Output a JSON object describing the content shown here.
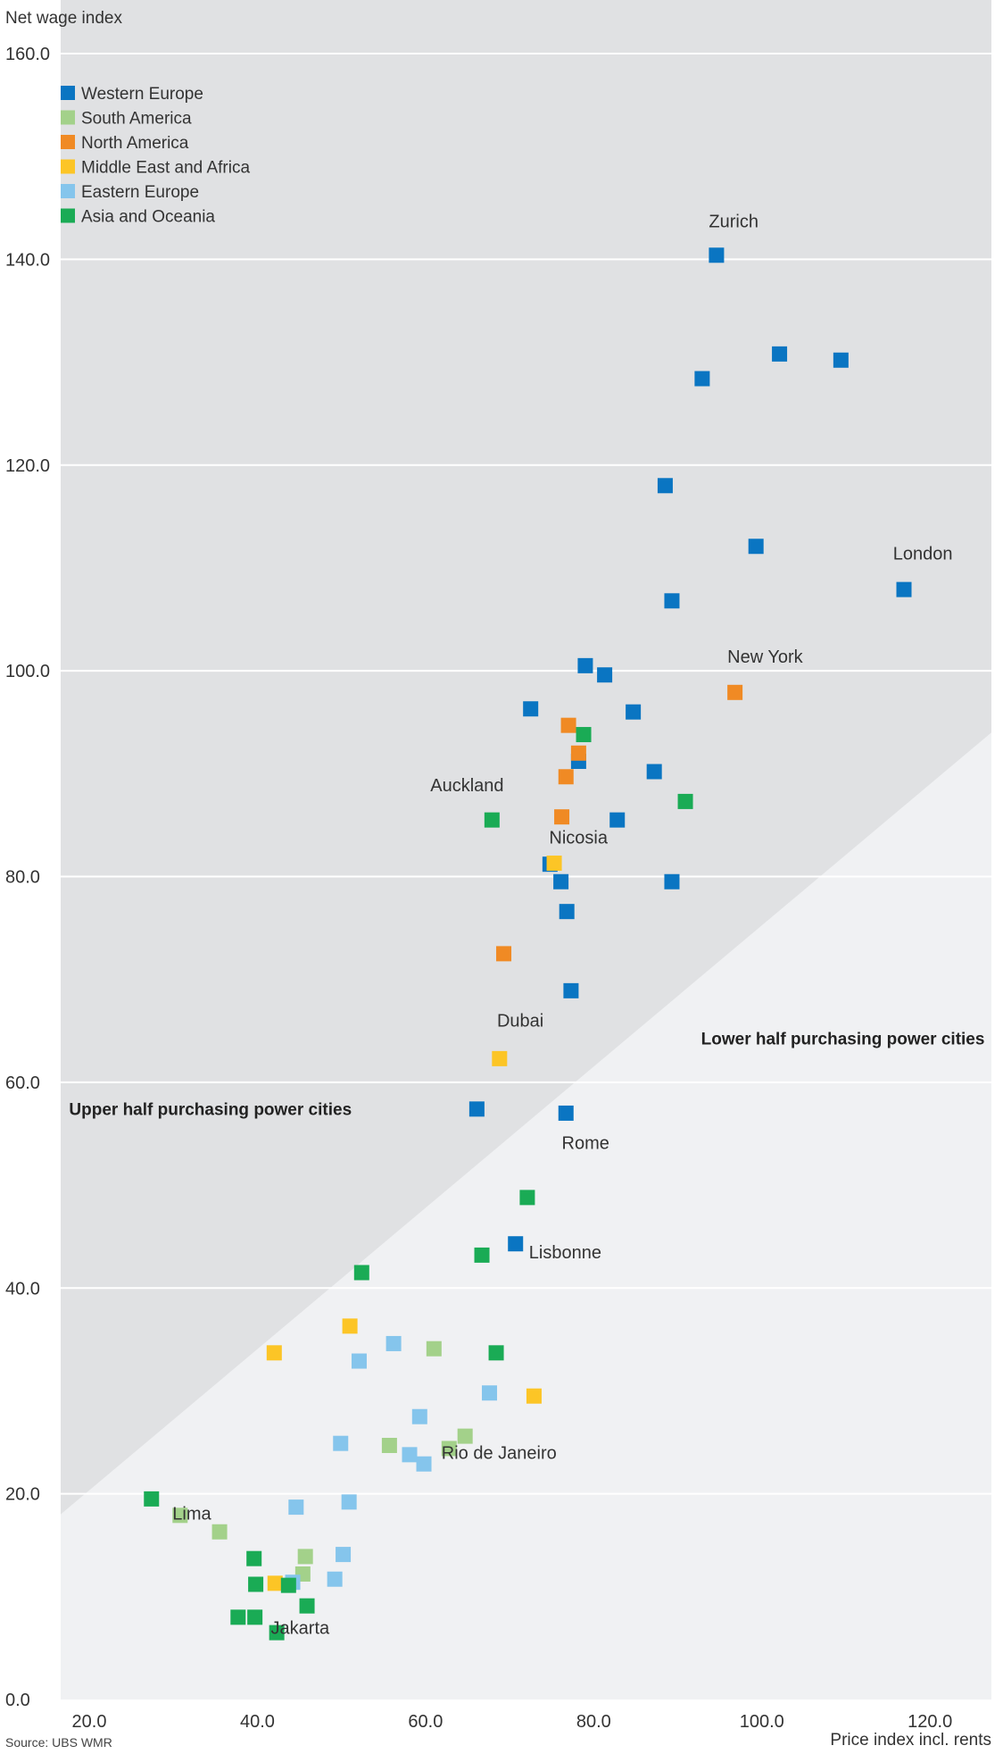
{
  "chart_data": {
    "type": "scatter",
    "ylabel": "Net wage index",
    "xlabel": "Price index incl. rents",
    "source": "Source: UBS WMR",
    "xlim": [
      18.3,
      129
    ],
    "ylim": [
      0,
      160
    ],
    "x_ticks": [
      "20.0",
      "40.0",
      "60.0",
      "80.0",
      "100.0",
      "120.0"
    ],
    "x_tick_values": [
      20,
      40,
      60,
      80,
      100,
      120
    ],
    "y_ticks": [
      "0.0",
      "20.0",
      "40.0",
      "60.0",
      "80.0",
      "100.0",
      "120.0",
      "140.0",
      "160.0"
    ],
    "y_tick_values": [
      0,
      20,
      40,
      60,
      80,
      100,
      120,
      140,
      160
    ],
    "grid": true,
    "legend_position": "top-left",
    "divider_line": {
      "from": [
        18.3,
        18
      ],
      "to": [
        129,
        94
      ]
    },
    "region_labels": {
      "upper": {
        "text": "Upper half purchasing power cities",
        "x": 19.3,
        "y": 56.8
      },
      "lower": {
        "text": "Lower half purchasing power cities",
        "x": 128.2,
        "y": 63.7
      }
    },
    "series": [
      {
        "name": "Western Europe",
        "color": "#0a75c2",
        "points": [
          [
            96.3,
            140.4
          ],
          [
            103.8,
            130.8
          ],
          [
            111.1,
            130.2
          ],
          [
            94.6,
            128.4
          ],
          [
            90.2,
            118.0
          ],
          [
            101.0,
            112.1
          ],
          [
            91.0,
            106.8
          ],
          [
            118.6,
            107.9
          ],
          [
            80.7,
            100.5
          ],
          [
            83.0,
            99.6
          ],
          [
            74.2,
            96.3
          ],
          [
            86.4,
            96.0
          ],
          [
            79.9,
            91.2
          ],
          [
            88.9,
            90.2
          ],
          [
            84.5,
            85.5
          ],
          [
            76.5,
            81.2
          ],
          [
            77.8,
            79.5
          ],
          [
            91.0,
            79.5
          ],
          [
            78.5,
            76.6
          ],
          [
            79.0,
            68.9
          ],
          [
            67.8,
            57.4
          ],
          [
            78.4,
            57.0
          ],
          [
            72.4,
            44.3
          ]
        ]
      },
      {
        "name": "South America",
        "color": "#a3d18a",
        "points": [
          [
            62.7,
            34.1
          ],
          [
            57.4,
            24.7
          ],
          [
            66.4,
            25.6
          ],
          [
            64.5,
            24.4
          ],
          [
            32.5,
            17.9
          ],
          [
            37.2,
            16.3
          ],
          [
            47.4,
            13.9
          ],
          [
            47.1,
            12.2
          ]
        ]
      },
      {
        "name": "North America",
        "color": "#f08a24",
        "points": [
          [
            98.5,
            97.9
          ],
          [
            78.7,
            94.7
          ],
          [
            79.9,
            92.0
          ],
          [
            78.4,
            89.7
          ],
          [
            77.9,
            85.8
          ],
          [
            71.0,
            72.5
          ]
        ]
      },
      {
        "name": "Middle East and Africa",
        "color": "#fcc526",
        "points": [
          [
            77.0,
            81.3
          ],
          [
            70.5,
            62.3
          ],
          [
            52.7,
            36.3
          ],
          [
            43.7,
            33.7
          ],
          [
            74.6,
            29.5
          ],
          [
            43.8,
            11.3
          ]
        ]
      },
      {
        "name": "Eastern Europe",
        "color": "#85c5ec",
        "points": [
          [
            57.9,
            34.6
          ],
          [
            53.8,
            32.9
          ],
          [
            69.3,
            29.8
          ],
          [
            61.0,
            27.5
          ],
          [
            51.6,
            24.9
          ],
          [
            59.8,
            23.8
          ],
          [
            61.5,
            22.9
          ],
          [
            52.6,
            19.2
          ],
          [
            46.3,
            18.7
          ],
          [
            51.9,
            14.1
          ],
          [
            50.9,
            11.7
          ],
          [
            45.9,
            11.4
          ]
        ]
      },
      {
        "name": "Asia and Oceania",
        "color": "#1aab55",
        "points": [
          [
            80.5,
            93.8
          ],
          [
            92.6,
            87.3
          ],
          [
            69.6,
            85.5
          ],
          [
            73.8,
            48.8
          ],
          [
            68.4,
            43.2
          ],
          [
            54.1,
            41.5
          ],
          [
            70.1,
            33.7
          ],
          [
            29.1,
            19.5
          ],
          [
            41.3,
            13.7
          ],
          [
            41.5,
            11.2
          ],
          [
            45.4,
            11.1
          ],
          [
            47.6,
            9.1
          ],
          [
            39.4,
            8.0
          ],
          [
            41.4,
            8.0
          ],
          [
            44.0,
            6.5
          ]
        ]
      }
    ],
    "annotations": [
      {
        "text": "Zurich",
        "x": 95.4,
        "y": 143.1,
        "anchor": "start"
      },
      {
        "text": "London",
        "x": 117.3,
        "y": 110.8,
        "anchor": "start"
      },
      {
        "text": "New York",
        "x": 97.6,
        "y": 100.8,
        "anchor": "start"
      },
      {
        "text": "Auckland",
        "x": 71.0,
        "y": 88.3,
        "anchor": "end"
      },
      {
        "text": "Nicosia",
        "x": 76.4,
        "y": 83.2,
        "anchor": "start"
      },
      {
        "text": "Dubai",
        "x": 70.2,
        "y": 65.4,
        "anchor": "start"
      },
      {
        "text": "Rome",
        "x": 77.9,
        "y": 53.5,
        "anchor": "start"
      },
      {
        "text": "Lisbonne",
        "x": 74.0,
        "y": 42.9,
        "anchor": "start"
      },
      {
        "text": "Rio de Janeiro",
        "x": 63.6,
        "y": 23.4,
        "anchor": "start"
      },
      {
        "text": "Lima",
        "x": 31.6,
        "y": 17.5,
        "anchor": "start"
      },
      {
        "text": "Jakarta",
        "x": 43.3,
        "y": 6.4,
        "anchor": "start"
      }
    ]
  }
}
